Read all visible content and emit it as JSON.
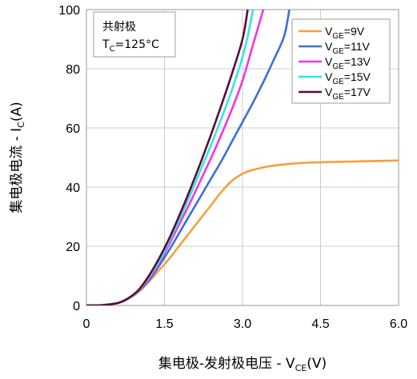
{
  "chart_data": {
    "type": "line",
    "xlabel": {
      "prefix": "集电极-发射极电压 - V",
      "sub": "CE",
      "suffix": "(V)"
    },
    "ylabel": {
      "prefix": "集电极电流 - I",
      "sub": "C",
      "suffix": "(A)"
    },
    "xlim": [
      0,
      6
    ],
    "ylim": [
      0,
      100
    ],
    "x_ticks": [
      "0",
      "1.5",
      "3.0",
      "4.5",
      "6.0"
    ],
    "y_ticks": [
      "0",
      "20",
      "40",
      "60",
      "80",
      "100"
    ],
    "grid": true,
    "legend_position": "top-right",
    "conditions": {
      "line1": "共射极",
      "line2_prefix": "T",
      "line2_sub": "C",
      "line2_suffix": "=125°C"
    },
    "series": [
      {
        "name": "VGE=9V",
        "legend": {
          "prefix": "V",
          "sub": "GE",
          "suffix": "=9V"
        },
        "color": "#f7a03a",
        "x": [
          0,
          0.3,
          0.6,
          0.8,
          1.0,
          1.2,
          1.4,
          1.6,
          1.8,
          2.0,
          2.2,
          2.4,
          2.6,
          2.8,
          3.0,
          3.2,
          3.5,
          4.0,
          4.5,
          5.0,
          5.5,
          6.0
        ],
        "y": [
          0,
          0.1,
          0.8,
          2.2,
          4.5,
          8,
          12,
          16,
          20.5,
          25,
          29.5,
          34,
          38.5,
          42.2,
          44.5,
          45.8,
          47,
          48,
          48.4,
          48.6,
          48.8,
          49
        ]
      },
      {
        "name": "VGE=11V",
        "legend": {
          "prefix": "V",
          "sub": "GE",
          "suffix": "=11V"
        },
        "color": "#3b6fd6",
        "x": [
          0,
          0.3,
          0.6,
          0.8,
          1.0,
          1.2,
          1.4,
          1.6,
          1.8,
          2.0,
          2.2,
          2.4,
          2.6,
          2.8,
          3.0,
          3.2,
          3.4,
          3.6,
          3.8,
          3.9
        ],
        "y": [
          0,
          0.1,
          0.8,
          2.3,
          4.8,
          8.5,
          13.5,
          19,
          25,
          31,
          37,
          43,
          49,
          55.5,
          62,
          68.5,
          75.5,
          83,
          91,
          100
        ]
      },
      {
        "name": "VGE=13V",
        "legend": {
          "prefix": "V",
          "sub": "GE",
          "suffix": "=13V"
        },
        "color": "#f036e0",
        "x": [
          0,
          0.3,
          0.6,
          0.8,
          1.0,
          1.2,
          1.4,
          1.6,
          1.8,
          2.0,
          2.2,
          2.4,
          2.6,
          2.8,
          3.0,
          3.2,
          3.4
        ],
        "y": [
          0,
          0.1,
          0.8,
          2.3,
          5,
          9,
          14.5,
          21,
          28,
          35,
          42.5,
          50,
          58,
          66.5,
          76,
          88,
          100
        ]
      },
      {
        "name": "VGE=15V",
        "legend": {
          "prefix": "V",
          "sub": "GE",
          "suffix": "=15V"
        },
        "color": "#33e6e6",
        "x": [
          0,
          0.3,
          0.6,
          0.8,
          1.0,
          1.2,
          1.4,
          1.6,
          1.8,
          2.0,
          2.2,
          2.4,
          2.6,
          2.8,
          3.0,
          3.1,
          3.2
        ],
        "y": [
          0,
          0.1,
          0.8,
          2.3,
          5,
          9.5,
          15,
          22,
          29.5,
          37.5,
          46,
          54.5,
          63.5,
          73,
          84,
          91,
          100
        ]
      },
      {
        "name": "VGE=17V",
        "legend": {
          "prefix": "V",
          "sub": "GE",
          "suffix": "=17V"
        },
        "color": "#5c0a38",
        "x": [
          0,
          0.3,
          0.6,
          0.8,
          1.0,
          1.2,
          1.4,
          1.6,
          1.8,
          2.0,
          2.2,
          2.4,
          2.6,
          2.8,
          3.0,
          3.1
        ],
        "y": [
          0,
          0.1,
          0.8,
          2.4,
          5.2,
          10,
          16,
          23,
          31,
          39.5,
          48.5,
          58,
          68,
          78.5,
          90,
          100
        ]
      }
    ]
  }
}
